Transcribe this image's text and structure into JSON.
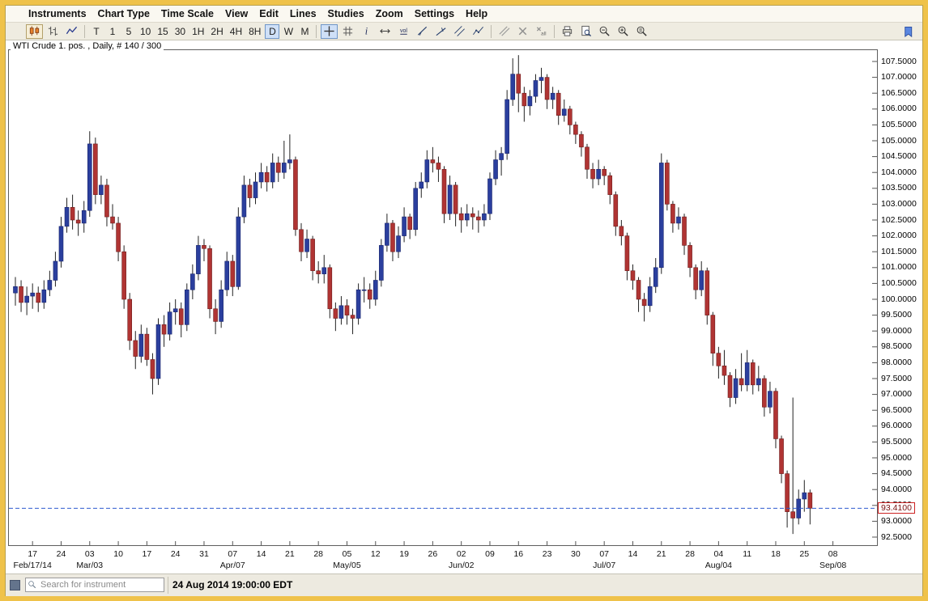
{
  "colors": {
    "window_border": "#EFC24A",
    "selected_button_bg": "#CFE0F7",
    "selected_button_border": "#6F96C8"
  },
  "menu": {
    "items": [
      "Instruments",
      "Chart Type",
      "Time Scale",
      "View",
      "Edit",
      "Lines",
      "Studies",
      "Zoom",
      "Settings",
      "Help"
    ]
  },
  "toolbar": {
    "buttons": [
      {
        "btn": "candlestick-chart-button",
        "icon": "candlestick-icon",
        "pressed": true
      },
      {
        "btn": "ohlc-bars-button",
        "icon": "ohlc-bars-icon"
      },
      {
        "btn": "line-chart-button",
        "icon": "line-chart-icon"
      },
      {
        "sep": true
      },
      {
        "btn": "timeframe-t-button",
        "label": "T"
      },
      {
        "btn": "timeframe-1-button",
        "label": "1"
      },
      {
        "btn": "timeframe-5-button",
        "label": "5"
      },
      {
        "btn": "timeframe-10-button",
        "label": "10"
      },
      {
        "btn": "timeframe-15-button",
        "label": "15"
      },
      {
        "btn": "timeframe-30-button",
        "label": "30"
      },
      {
        "btn": "timeframe-1h-button",
        "label": "1H"
      },
      {
        "btn": "timeframe-2h-button",
        "label": "2H"
      },
      {
        "btn": "timeframe-4h-button",
        "label": "4H"
      },
      {
        "btn": "timeframe-8h-button",
        "label": "8H"
      },
      {
        "btn": "timeframe-d-button",
        "label": "D",
        "sel": true
      },
      {
        "btn": "timeframe-w-button",
        "label": "W"
      },
      {
        "btn": "timeframe-m-button",
        "label": "M"
      },
      {
        "sep": true
      },
      {
        "btn": "crosshair-tool-button",
        "icon": "crosshair-icon",
        "sel": true
      },
      {
        "btn": "grid-toggle-button",
        "icon": "grid-icon"
      },
      {
        "btn": "info-cursor-button",
        "icon": "info-icon"
      },
      {
        "btn": "bar-spacing-button",
        "icon": "width-icon"
      },
      {
        "btn": "volume-toggle-button",
        "icon": "volume-icon"
      },
      {
        "btn": "trendline-button",
        "icon": "trendline-icon"
      },
      {
        "btn": "ray-line-button",
        "icon": "ray-icon"
      },
      {
        "btn": "channel-button",
        "icon": "channel-icon"
      },
      {
        "btn": "polyline-button",
        "icon": "polyline-icon"
      },
      {
        "sep": true
      },
      {
        "btn": "parallel-lines-button",
        "icon": "parallel-lines-icon"
      },
      {
        "btn": "delete-drawing-button",
        "icon": "x-icon"
      },
      {
        "btn": "delete-all-button",
        "icon": "delete-all-icon"
      },
      {
        "sep": true
      },
      {
        "btn": "print-button",
        "icon": "printer-icon"
      },
      {
        "btn": "print-preview-button",
        "icon": "print-preview-icon"
      },
      {
        "btn": "zoom-out-button",
        "icon": "zoom-out-icon"
      },
      {
        "btn": "zoom-in-button",
        "icon": "zoom-in-icon"
      },
      {
        "btn": "zoom-fit-button",
        "icon": "zoom-fit-icon"
      }
    ],
    "bookmark": {
      "btn": "bookmark-button",
      "icon": "flag-icon"
    }
  },
  "chart_data": {
    "type": "candlestick",
    "symbol_title": "WTI Crude 1. pos. , Daily, # 140 / 300",
    "instrument": "WTI Crude 1. pos.",
    "timeframe": "Daily",
    "bars_shown": "140 / 300",
    "last_price": 93.41,
    "last_price_label": "93.4100",
    "y_axis": {
      "min": 92.5,
      "max": 107.5,
      "step": 0.5,
      "decimals": 4
    },
    "x_axis": {
      "week_labels": [
        "17",
        "24",
        "03",
        "10",
        "17",
        "24",
        "31",
        "07",
        "14",
        "21",
        "28",
        "05",
        "12",
        "19",
        "26",
        "02",
        "09",
        "16",
        "23",
        "30",
        "07",
        "14",
        "21",
        "28",
        "04",
        "11",
        "18",
        "25",
        "08"
      ],
      "month_labels": [
        {
          "tick": 0,
          "label": "Feb/17/14"
        },
        {
          "tick": 2,
          "label": "Mar/03"
        },
        {
          "tick": 7,
          "label": "Apr/07"
        },
        {
          "tick": 11,
          "label": "May/05"
        },
        {
          "tick": 15,
          "label": "Jun/02"
        },
        {
          "tick": 20,
          "label": "Jul/07"
        },
        {
          "tick": 24,
          "label": "Aug/04"
        },
        {
          "tick": 28,
          "label": "Sep/08"
        }
      ]
    },
    "colors": {
      "up": "#2B3F9E",
      "down": "#B03433",
      "up_border": "#18246B",
      "down_border": "#6E1D1D",
      "wick": "#222222",
      "last_price_line": "#2F5BD0",
      "last_price_box_border": "#CC2222"
    },
    "candles": [
      [
        100.2,
        100.7,
        99.8,
        100.4
      ],
      [
        100.4,
        100.6,
        99.6,
        99.9
      ],
      [
        99.9,
        100.4,
        99.5,
        100.1
      ],
      [
        100.1,
        100.5,
        99.7,
        100.2
      ],
      [
        100.2,
        100.4,
        99.6,
        99.9
      ],
      [
        99.9,
        100.6,
        99.7,
        100.3
      ],
      [
        100.3,
        100.9,
        100.1,
        100.6
      ],
      [
        100.6,
        101.5,
        100.4,
        101.2
      ],
      [
        101.2,
        102.6,
        101.0,
        102.3
      ],
      [
        102.3,
        103.2,
        102.1,
        102.9
      ],
      [
        102.9,
        103.3,
        102.2,
        102.5
      ],
      [
        102.5,
        102.8,
        102.0,
        102.4
      ],
      [
        102.4,
        103.1,
        102.1,
        102.8
      ],
      [
        102.8,
        105.3,
        102.6,
        104.9
      ],
      [
        104.9,
        105.1,
        103.0,
        103.3
      ],
      [
        103.3,
        103.9,
        103.0,
        103.6
      ],
      [
        103.6,
        103.8,
        102.3,
        102.6
      ],
      [
        102.6,
        103.0,
        102.2,
        102.4
      ],
      [
        102.4,
        102.6,
        101.2,
        101.5
      ],
      [
        101.5,
        101.7,
        99.7,
        100.0
      ],
      [
        100.0,
        100.2,
        98.4,
        98.7
      ],
      [
        98.7,
        99.0,
        97.8,
        98.2
      ],
      [
        98.2,
        99.2,
        98.0,
        98.9
      ],
      [
        98.9,
        99.1,
        97.9,
        98.1
      ],
      [
        98.1,
        98.3,
        97.0,
        97.5
      ],
      [
        97.5,
        99.4,
        97.3,
        99.2
      ],
      [
        99.2,
        99.5,
        98.5,
        98.9
      ],
      [
        98.9,
        99.9,
        98.7,
        99.6
      ],
      [
        99.6,
        100.0,
        99.2,
        99.7
      ],
      [
        99.7,
        99.9,
        98.8,
        99.2
      ],
      [
        99.2,
        100.5,
        99.0,
        100.3
      ],
      [
        100.3,
        101.1,
        100.0,
        100.8
      ],
      [
        100.8,
        102.0,
        100.6,
        101.7
      ],
      [
        101.7,
        101.9,
        101.2,
        101.6
      ],
      [
        101.6,
        101.7,
        99.4,
        99.7
      ],
      [
        99.7,
        100.0,
        98.9,
        99.3
      ],
      [
        99.3,
        100.6,
        99.1,
        100.3
      ],
      [
        100.3,
        101.5,
        100.1,
        101.2
      ],
      [
        101.2,
        101.4,
        100.1,
        100.4
      ],
      [
        100.4,
        102.9,
        100.3,
        102.6
      ],
      [
        102.6,
        103.9,
        102.4,
        103.6
      ],
      [
        103.6,
        103.8,
        102.9,
        103.2
      ],
      [
        103.2,
        104.0,
        103.0,
        103.7
      ],
      [
        103.7,
        104.3,
        103.5,
        104.0
      ],
      [
        104.0,
        104.2,
        103.4,
        103.7
      ],
      [
        103.7,
        104.6,
        103.5,
        104.3
      ],
      [
        104.3,
        104.5,
        103.7,
        104.0
      ],
      [
        104.0,
        105.0,
        103.8,
        104.3
      ],
      [
        104.3,
        105.2,
        104.1,
        104.4
      ],
      [
        104.4,
        104.5,
        102.0,
        102.2
      ],
      [
        102.2,
        102.4,
        101.2,
        101.5
      ],
      [
        101.5,
        102.2,
        101.3,
        101.9
      ],
      [
        101.9,
        102.0,
        100.6,
        100.9
      ],
      [
        100.9,
        101.2,
        100.5,
        100.8
      ],
      [
        100.8,
        101.4,
        100.5,
        101.0
      ],
      [
        101.0,
        101.1,
        99.4,
        99.7
      ],
      [
        99.7,
        99.9,
        99.0,
        99.4
      ],
      [
        99.4,
        100.1,
        99.2,
        99.8
      ],
      [
        99.8,
        100.0,
        99.2,
        99.5
      ],
      [
        99.5,
        99.7,
        98.9,
        99.4
      ],
      [
        99.4,
        100.5,
        99.2,
        100.3
      ],
      [
        100.3,
        100.7,
        99.9,
        100.3
      ],
      [
        100.3,
        100.5,
        99.7,
        100.0
      ],
      [
        100.0,
        100.9,
        99.8,
        100.6
      ],
      [
        100.6,
        101.9,
        100.4,
        101.7
      ],
      [
        101.7,
        102.7,
        101.5,
        102.4
      ],
      [
        102.4,
        102.5,
        101.2,
        101.5
      ],
      [
        101.5,
        102.3,
        101.3,
        102.0
      ],
      [
        102.0,
        102.9,
        101.8,
        102.6
      ],
      [
        102.6,
        102.7,
        101.9,
        102.2
      ],
      [
        102.2,
        103.7,
        102.0,
        103.5
      ],
      [
        103.5,
        104.0,
        103.2,
        103.7
      ],
      [
        103.7,
        104.7,
        103.5,
        104.4
      ],
      [
        104.4,
        104.8,
        104.0,
        104.3
      ],
      [
        104.3,
        104.5,
        103.7,
        104.1
      ],
      [
        104.1,
        104.2,
        102.4,
        102.7
      ],
      [
        102.7,
        103.9,
        102.5,
        103.6
      ],
      [
        103.6,
        103.7,
        102.3,
        102.7
      ],
      [
        102.7,
        102.9,
        102.1,
        102.5
      ],
      [
        102.5,
        103.0,
        102.3,
        102.7
      ],
      [
        102.7,
        102.9,
        102.2,
        102.6
      ],
      [
        102.6,
        102.8,
        102.1,
        102.5
      ],
      [
        102.5,
        103.0,
        102.3,
        102.7
      ],
      [
        102.7,
        104.0,
        102.5,
        103.8
      ],
      [
        103.8,
        104.7,
        103.6,
        104.4
      ],
      [
        104.4,
        104.8,
        103.9,
        104.6
      ],
      [
        104.6,
        106.6,
        104.4,
        106.3
      ],
      [
        106.3,
        107.6,
        106.1,
        107.1
      ],
      [
        107.1,
        107.7,
        105.9,
        106.5
      ],
      [
        106.5,
        106.7,
        105.6,
        106.1
      ],
      [
        106.1,
        106.6,
        105.8,
        106.4
      ],
      [
        106.4,
        107.1,
        106.2,
        106.9
      ],
      [
        106.9,
        107.3,
        106.5,
        107.0
      ],
      [
        107.0,
        107.1,
        106.0,
        106.3
      ],
      [
        106.3,
        106.7,
        106.0,
        106.5
      ],
      [
        106.5,
        106.6,
        105.5,
        105.8
      ],
      [
        105.8,
        106.3,
        105.6,
        106.0
      ],
      [
        106.0,
        106.1,
        105.2,
        105.5
      ],
      [
        105.5,
        105.6,
        104.9,
        105.2
      ],
      [
        105.2,
        105.3,
        104.5,
        104.8
      ],
      [
        104.8,
        104.9,
        103.8,
        104.1
      ],
      [
        104.1,
        104.3,
        103.5,
        103.8
      ],
      [
        103.8,
        104.4,
        103.6,
        104.1
      ],
      [
        104.1,
        104.2,
        103.6,
        103.9
      ],
      [
        103.9,
        104.0,
        103.0,
        103.3
      ],
      [
        103.3,
        103.4,
        102.0,
        102.3
      ],
      [
        102.3,
        102.5,
        101.7,
        102.0
      ],
      [
        102.0,
        102.1,
        100.6,
        100.9
      ],
      [
        100.9,
        101.1,
        100.3,
        100.6
      ],
      [
        100.6,
        100.7,
        99.6,
        100.0
      ],
      [
        100.0,
        100.2,
        99.3,
        99.8
      ],
      [
        99.8,
        100.7,
        99.6,
        100.4
      ],
      [
        100.4,
        101.3,
        100.2,
        101.0
      ],
      [
        101.0,
        104.6,
        100.8,
        104.3
      ],
      [
        104.3,
        104.4,
        102.8,
        103.0
      ],
      [
        103.0,
        103.1,
        102.1,
        102.4
      ],
      [
        102.4,
        102.9,
        102.2,
        102.6
      ],
      [
        102.6,
        102.7,
        101.4,
        101.7
      ],
      [
        101.7,
        101.8,
        100.7,
        101.0
      ],
      [
        101.0,
        101.1,
        100.0,
        100.3
      ],
      [
        100.3,
        101.2,
        100.1,
        100.9
      ],
      [
        100.9,
        101.0,
        99.2,
        99.5
      ],
      [
        99.5,
        99.6,
        97.9,
        98.3
      ],
      [
        98.3,
        98.5,
        97.5,
        97.9
      ],
      [
        97.9,
        98.4,
        97.3,
        97.6
      ],
      [
        97.6,
        97.7,
        96.6,
        96.9
      ],
      [
        96.9,
        97.8,
        96.7,
        97.5
      ],
      [
        97.5,
        98.3,
        97.1,
        97.3
      ],
      [
        97.3,
        98.4,
        97.1,
        98.0
      ],
      [
        98.0,
        98.1,
        97.0,
        97.3
      ],
      [
        97.3,
        97.9,
        97.1,
        97.5
      ],
      [
        97.5,
        97.6,
        96.3,
        96.6
      ],
      [
        96.6,
        97.4,
        96.4,
        97.1
      ],
      [
        97.1,
        97.2,
        95.3,
        95.6
      ],
      [
        95.6,
        95.7,
        94.2,
        94.5
      ],
      [
        94.5,
        94.6,
        92.8,
        93.3
      ],
      [
        93.3,
        96.9,
        92.6,
        93.1
      ],
      [
        93.1,
        94.0,
        92.9,
        93.7
      ],
      [
        93.7,
        94.3,
        93.3,
        93.9
      ],
      [
        93.9,
        94.0,
        92.9,
        93.41
      ]
    ]
  },
  "statusbar": {
    "search_placeholder": "Search for instrument",
    "timestamp": "24 Aug 2014 19:00:00 EDT"
  }
}
